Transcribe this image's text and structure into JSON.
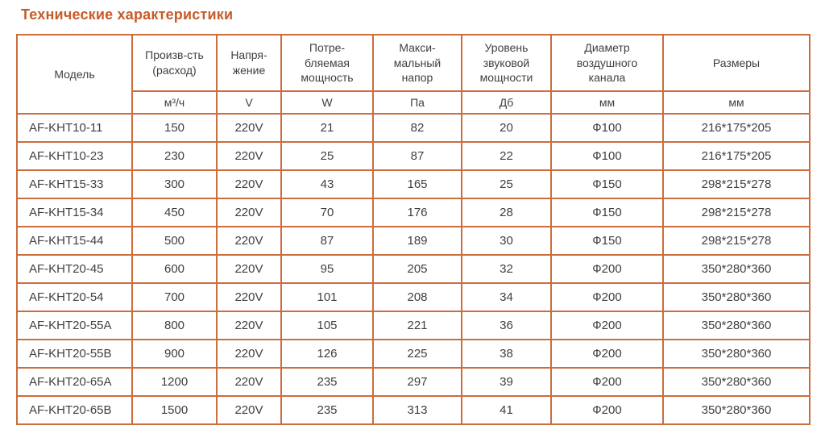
{
  "title": "Технические характеристики",
  "accent_colors": {
    "title": "#c75b28",
    "table_border": "#cb6d3d",
    "text": "#3f3f3f"
  },
  "table": {
    "columns": [
      {
        "label": "Модель",
        "unit": ""
      },
      {
        "label": "Произв-сть\n(расход)",
        "unit": "м³/ч"
      },
      {
        "label": "Напря-\nжение",
        "unit": "V"
      },
      {
        "label": "Потре-\nбляемая\nмощность",
        "unit": "W"
      },
      {
        "label": "Макси-\nмальный\nнапор",
        "unit": "Па"
      },
      {
        "label": "Уровень\nзвуковой\nмощности",
        "unit": "Дб"
      },
      {
        "label": "Диаметр\nвоздушного\nканала",
        "unit": "мм"
      },
      {
        "label": "Размеры",
        "unit": "мм"
      }
    ],
    "rows": [
      [
        "AF-KHT10-11",
        "150",
        "220V",
        "21",
        "82",
        "20",
        "Ф100",
        "216*175*205"
      ],
      [
        "AF-KHT10-23",
        "230",
        "220V",
        "25",
        "87",
        "22",
        "Ф100",
        "216*175*205"
      ],
      [
        "AF-KHT15-33",
        "300",
        "220V",
        "43",
        "165",
        "25",
        "Ф150",
        "298*215*278"
      ],
      [
        "AF-KHT15-34",
        "450",
        "220V",
        "70",
        "176",
        "28",
        "Ф150",
        "298*215*278"
      ],
      [
        "AF-KHT15-44",
        "500",
        "220V",
        "87",
        "189",
        "30",
        "Ф150",
        "298*215*278"
      ],
      [
        "AF-KHT20-45",
        "600",
        "220V",
        "95",
        "205",
        "32",
        "Ф200",
        "350*280*360"
      ],
      [
        "AF-KHT20-54",
        "700",
        "220V",
        "101",
        "208",
        "34",
        "Ф200",
        "350*280*360"
      ],
      [
        "AF-KHT20-55A",
        "800",
        "220V",
        "105",
        "221",
        "36",
        "Ф200",
        "350*280*360"
      ],
      [
        "AF-KHT20-55B",
        "900",
        "220V",
        "126",
        "225",
        "38",
        "Ф200",
        "350*280*360"
      ],
      [
        "AF-KHT20-65A",
        "1200",
        "220V",
        "235",
        "297",
        "39",
        "Ф200",
        "350*280*360"
      ],
      [
        "AF-KHT20-65B",
        "1500",
        "220V",
        "235",
        "313",
        "41",
        "Ф200",
        "350*280*360"
      ]
    ]
  }
}
